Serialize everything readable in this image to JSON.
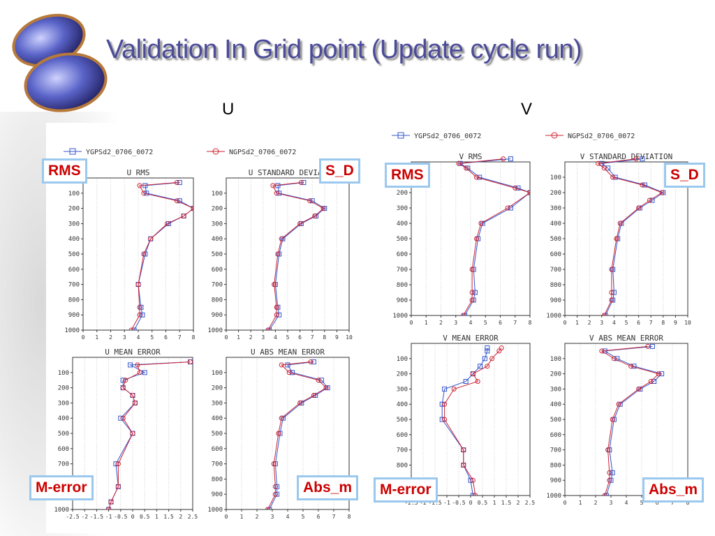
{
  "title": "Validation In Grid point (Update cycle run)",
  "component_labels": [
    "U",
    "V"
  ],
  "tag_labels": {
    "rms": "RMS",
    "sd": "S_D",
    "merr": "M-error",
    "absm": "Abs_m"
  },
  "colors": {
    "ygps": "#3355cc",
    "ngps": "#cc2233",
    "title": "#4b4b9a",
    "tag_border": "#9ac8ee",
    "tag_text": "#cc0000"
  },
  "chart_data": [
    {
      "type": "line",
      "title": "U RMS",
      "xlim": [
        0,
        8
      ],
      "xticks": [
        0,
        1,
        2,
        3,
        4,
        5,
        6,
        7,
        8
      ],
      "ylim": [
        1000,
        0
      ],
      "yticks": [
        1000,
        900,
        800,
        700,
        600,
        500,
        400,
        300,
        200,
        100
      ],
      "legend": [
        "YGPSd2_0706_0072"
      ],
      "series": [
        {
          "name": "YGPSd2_0706_0072",
          "marker": "square",
          "y": [
            30,
            50,
            100,
            150,
            200,
            250,
            300,
            400,
            500,
            700,
            850,
            900,
            1000
          ],
          "x": [
            7.0,
            4.5,
            4.6,
            7.0,
            8.0,
            7.3,
            6.2,
            4.9,
            4.5,
            4.0,
            4.2,
            4.3,
            3.7
          ]
        },
        {
          "name": "NGPSd2_0706_0072",
          "marker": "circle",
          "y": [
            30,
            50,
            100,
            150,
            200,
            250,
            300,
            400,
            500,
            700,
            850,
            900,
            1000
          ],
          "x": [
            6.8,
            4.1,
            4.4,
            6.8,
            8.0,
            7.3,
            6.1,
            4.9,
            4.4,
            4.0,
            4.1,
            4.1,
            3.5
          ]
        }
      ]
    },
    {
      "type": "line",
      "title": "U STANDARD DEVIAT",
      "xlim": [
        0,
        10
      ],
      "xticks": [
        0,
        1,
        2,
        3,
        4,
        5,
        6,
        7,
        8,
        9,
        10
      ],
      "ylim": [
        1000,
        0
      ],
      "yticks": [
        1000,
        900,
        800,
        700,
        600,
        500,
        400,
        300,
        200,
        100
      ],
      "legend": [
        "NGPSd2_0706_0072"
      ],
      "series": [
        {
          "name": "YGPSd2_0706_0072",
          "marker": "square",
          "y": [
            30,
            50,
            100,
            150,
            200,
            250,
            300,
            400,
            500,
            700,
            850,
            900,
            1000
          ],
          "x": [
            6.3,
            4.2,
            4.3,
            7.0,
            8.0,
            7.3,
            6.1,
            4.6,
            4.3,
            4.0,
            4.2,
            4.3,
            3.5
          ]
        },
        {
          "name": "NGPSd2_0706_0072",
          "marker": "circle",
          "y": [
            30,
            50,
            100,
            150,
            200,
            250,
            300,
            400,
            500,
            700,
            850,
            900,
            1000
          ],
          "x": [
            6.1,
            3.8,
            4.1,
            6.8,
            7.9,
            7.2,
            6.0,
            4.5,
            4.2,
            3.9,
            4.1,
            4.1,
            3.4
          ]
        }
      ]
    },
    {
      "type": "line",
      "title": "U MEAN ERROR",
      "xlim": [
        -2.5,
        2.5
      ],
      "xticks": [
        "-2.5",
        "-2",
        "-1.5",
        "-1",
        "-0.5",
        "0",
        "0.5",
        "1",
        "1.5",
        "2",
        "2.5"
      ],
      "ylim": [
        1000,
        0
      ],
      "yticks": [
        1000,
        900,
        800,
        700,
        600,
        500,
        400,
        300,
        200,
        100
      ],
      "series": [
        {
          "name": "YGPSd2_0706_0072",
          "marker": "square",
          "y": [
            30,
            50,
            100,
            150,
            200,
            250,
            300,
            400,
            500,
            700,
            850,
            950,
            1000
          ],
          "x": [
            2.4,
            -0.1,
            0.5,
            -0.4,
            -0.4,
            0.0,
            0.1,
            -0.5,
            0.0,
            -0.7,
            -0.6,
            -0.9,
            -1.0
          ]
        },
        {
          "name": "NGPSd2_0706_0072",
          "marker": "circle",
          "y": [
            30,
            50,
            100,
            150,
            200,
            250,
            300,
            400,
            500,
            700,
            850,
            950,
            1000
          ],
          "x": [
            2.4,
            0.2,
            0.3,
            -0.3,
            -0.4,
            0.0,
            0.1,
            -0.4,
            0.0,
            -0.6,
            -0.6,
            -0.9,
            -1.0
          ]
        }
      ]
    },
    {
      "type": "line",
      "title": "U ABS MEAN ERROR",
      "xlim": [
        0,
        8
      ],
      "xticks": [
        0,
        1,
        2,
        3,
        4,
        5,
        6,
        7,
        8
      ],
      "ylim": [
        1000,
        0
      ],
      "yticks": [
        1000,
        900,
        800,
        700,
        600,
        500,
        400,
        300,
        200,
        100
      ],
      "series": [
        {
          "name": "YGPSd2_0706_0072",
          "marker": "square",
          "y": [
            30,
            50,
            100,
            150,
            200,
            250,
            300,
            400,
            500,
            700,
            850,
            900,
            1000
          ],
          "x": [
            5.7,
            4.0,
            4.3,
            6.2,
            6.6,
            5.8,
            4.9,
            3.7,
            3.5,
            3.2,
            3.3,
            3.3,
            2.8
          ]
        },
        {
          "name": "NGPSd2_0706_0072",
          "marker": "circle",
          "y": [
            30,
            50,
            100,
            150,
            200,
            250,
            300,
            400,
            500,
            700,
            850,
            900,
            1000
          ],
          "x": [
            5.5,
            3.6,
            4.1,
            6.0,
            6.5,
            5.7,
            4.8,
            3.6,
            3.4,
            3.1,
            3.2,
            3.2,
            2.7
          ]
        }
      ]
    },
    {
      "type": "line",
      "title": "V RMS",
      "xlim": [
        0,
        8
      ],
      "xticks": [
        0,
        1,
        2,
        3,
        4,
        5,
        6,
        7,
        8
      ],
      "ylim": [
        1000,
        0
      ],
      "yticks": [
        1000,
        900,
        800,
        700,
        600,
        500,
        400,
        300,
        200,
        100
      ],
      "legend": [
        "YGPSd2_0706_0072"
      ],
      "series": [
        {
          "name": "YGPSd2_0706_0072",
          "marker": "square",
          "y": [
            -20,
            10,
            40,
            100,
            170,
            200,
            300,
            400,
            500,
            700,
            850,
            900,
            1000
          ],
          "x": [
            6.7,
            3.3,
            3.8,
            4.6,
            7.2,
            8.0,
            6.7,
            4.8,
            4.5,
            4.2,
            4.3,
            4.2,
            3.6
          ]
        },
        {
          "name": "NGPSd2_0706_0072",
          "marker": "circle",
          "y": [
            -20,
            10,
            40,
            100,
            170,
            200,
            300,
            400,
            500,
            700,
            850,
            900,
            1000
          ],
          "x": [
            6.2,
            3.2,
            3.7,
            4.4,
            7.0,
            8.0,
            6.5,
            4.7,
            4.4,
            4.1,
            4.1,
            4.1,
            3.5
          ]
        }
      ]
    },
    {
      "type": "line",
      "title": "V STANDARD DEVIATION",
      "xlim": [
        0,
        10
      ],
      "xticks": [
        0,
        1,
        2,
        3,
        4,
        5,
        6,
        7,
        8,
        9,
        10
      ],
      "ylim": [
        1000,
        0
      ],
      "yticks": [
        1000,
        900,
        800,
        700,
        600,
        500,
        400,
        300,
        200,
        100
      ],
      "legend": [
        "NGPSd2_0706_0072"
      ],
      "series": [
        {
          "name": "YGPSd2_0706_0072",
          "marker": "square",
          "y": [
            -20,
            10,
            40,
            100,
            150,
            200,
            250,
            300,
            400,
            500,
            700,
            850,
            900,
            1000
          ],
          "x": [
            6.3,
            3.0,
            3.5,
            4.1,
            6.5,
            8.0,
            7.1,
            6.1,
            4.6,
            4.3,
            3.9,
            4.0,
            3.9,
            3.3
          ]
        },
        {
          "name": "NGPSd2_0706_0072",
          "marker": "circle",
          "y": [
            -20,
            10,
            40,
            100,
            150,
            200,
            250,
            300,
            400,
            500,
            700,
            850,
            900,
            1000
          ],
          "x": [
            5.8,
            2.7,
            3.2,
            3.9,
            6.3,
            7.9,
            6.9,
            6.0,
            4.5,
            4.2,
            3.8,
            3.8,
            3.8,
            3.2
          ]
        }
      ]
    },
    {
      "type": "line",
      "title": "V MEAN ERROR",
      "xlim": [
        -2.5,
        2.5
      ],
      "xticks": [
        "-2.5",
        "-2",
        "-1.5",
        "-1",
        "-0.5",
        "0",
        "0.5",
        "1",
        "1.5",
        "2",
        "2.5"
      ],
      "ylim": [
        1000,
        0
      ],
      "yticks": [
        1000,
        900,
        800,
        700,
        600,
        500,
        400,
        300,
        200,
        100
      ],
      "series": [
        {
          "name": "YGPSd2_0706_0072",
          "marker": "square",
          "y": [
            30,
            50,
            100,
            150,
            200,
            250,
            300,
            400,
            500,
            700,
            800,
            900,
            1000
          ],
          "x": [
            0.7,
            0.7,
            0.6,
            0.4,
            0.1,
            -0.2,
            -1.1,
            -1.2,
            -1.2,
            -0.3,
            -0.3,
            0.0,
            0.1
          ]
        },
        {
          "name": "NGPSd2_0706_0072",
          "marker": "circle",
          "y": [
            30,
            50,
            100,
            150,
            200,
            250,
            300,
            400,
            500,
            700,
            800,
            900,
            1000
          ],
          "x": [
            1.3,
            1.2,
            0.9,
            0.7,
            0.1,
            0.3,
            -0.7,
            -1.1,
            -1.1,
            -0.3,
            -0.3,
            0.1,
            0.2
          ]
        }
      ]
    },
    {
      "type": "line",
      "title": "V ABS MEAN ERROR",
      "xlim": [
        0,
        8
      ],
      "xticks": [
        0,
        1,
        2,
        3,
        4,
        5,
        6,
        7,
        8
      ],
      "ylim": [
        1000,
        0
      ],
      "yticks": [
        1000,
        900,
        800,
        700,
        600,
        500,
        400,
        300,
        200,
        100
      ],
      "series": [
        {
          "name": "YGPSd2_0706_0072",
          "marker": "square",
          "y": [
            20,
            50,
            100,
            150,
            200,
            250,
            300,
            400,
            500,
            700,
            850,
            900,
            1000
          ],
          "x": [
            5.7,
            2.6,
            3.4,
            4.5,
            6.3,
            5.8,
            4.9,
            3.6,
            3.2,
            2.9,
            3.1,
            3.0,
            2.7
          ]
        },
        {
          "name": "NGPSd2_0706_0072",
          "marker": "circle",
          "y": [
            20,
            50,
            100,
            150,
            200,
            250,
            300,
            400,
            500,
            700,
            850,
            900,
            1000
          ],
          "x": [
            5.4,
            2.4,
            3.2,
            4.3,
            6.1,
            5.6,
            4.8,
            3.5,
            3.1,
            2.8,
            2.9,
            2.9,
            2.6
          ]
        }
      ]
    }
  ]
}
